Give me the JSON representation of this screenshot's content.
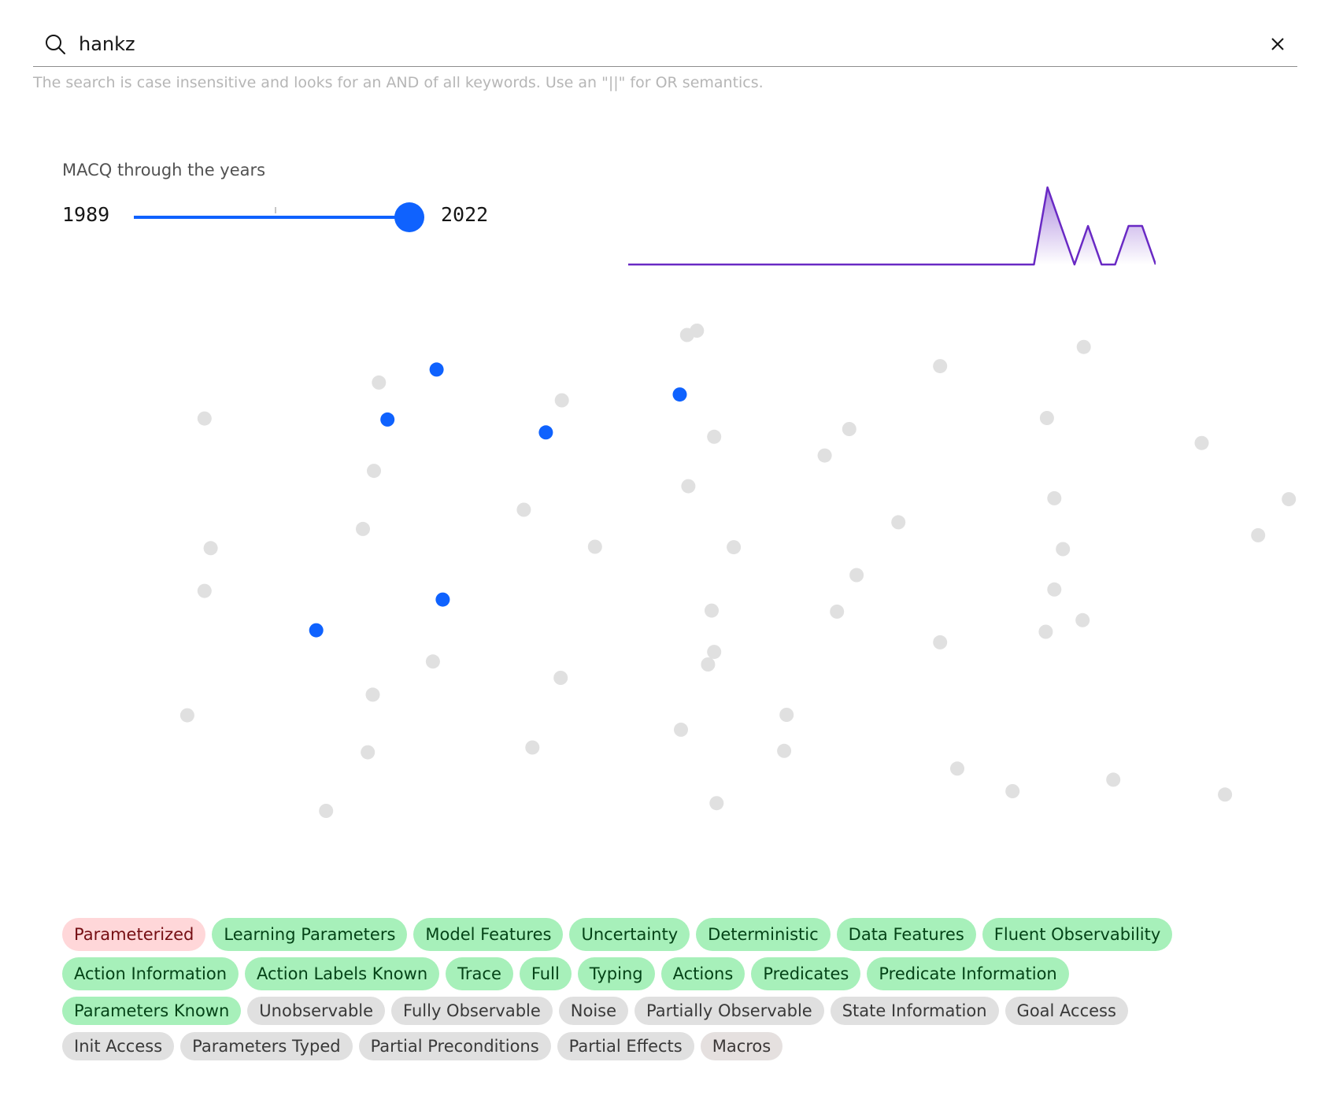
{
  "search": {
    "value": "hankz",
    "helper_text": "The search is case insensitive and looks for an AND of all keywords. Use an \"||\" for OR semantics."
  },
  "timeline": {
    "title": "MACQ through the years",
    "min_year": "1989",
    "max_year": "2022",
    "selected_fraction": 1.0
  },
  "sparkline_data": {
    "type": "area",
    "color": "#6929c4",
    "values": [
      0,
      0,
      0,
      0,
      0,
      0,
      0,
      0,
      0,
      0,
      0,
      0,
      0,
      0,
      0,
      0,
      0,
      0,
      0,
      0,
      0,
      0,
      0,
      0,
      0,
      0,
      0,
      0,
      0,
      0,
      0,
      2,
      1,
      0,
      1,
      0,
      0,
      1,
      1,
      0
    ]
  },
  "scatter": {
    "inactive_color": "#e0e0e0",
    "active_color": "#0f62fe",
    "points": [
      {
        "x": 0.489,
        "y": 0.991,
        "active": false
      },
      {
        "x": 0.812,
        "y": 0.966,
        "active": false
      },
      {
        "x": 0.695,
        "y": 0.926,
        "active": false
      },
      {
        "x": 0.238,
        "y": 0.892,
        "active": false
      },
      {
        "x": 0.096,
        "y": 0.817,
        "active": false
      },
      {
        "x": 0.387,
        "y": 0.855,
        "active": false
      },
      {
        "x": 0.511,
        "y": 0.779,
        "active": false
      },
      {
        "x": 0.621,
        "y": 0.795,
        "active": false
      },
      {
        "x": 0.782,
        "y": 0.818,
        "active": false
      },
      {
        "x": 0.908,
        "y": 0.766,
        "active": false
      },
      {
        "x": 0.234,
        "y": 0.708,
        "active": false
      },
      {
        "x": 0.601,
        "y": 0.74,
        "active": false
      },
      {
        "x": 0.49,
        "y": 0.676,
        "active": false
      },
      {
        "x": 0.356,
        "y": 0.627,
        "active": false
      },
      {
        "x": 0.225,
        "y": 0.587,
        "active": false
      },
      {
        "x": 0.101,
        "y": 0.547,
        "active": false
      },
      {
        "x": 0.414,
        "y": 0.55,
        "active": false
      },
      {
        "x": 0.661,
        "y": 0.601,
        "active": false
      },
      {
        "x": 0.788,
        "y": 0.651,
        "active": false
      },
      {
        "x": 0.527,
        "y": 0.549,
        "active": false
      },
      {
        "x": 0.627,
        "y": 0.491,
        "active": false
      },
      {
        "x": 0.795,
        "y": 0.545,
        "active": false
      },
      {
        "x": 0.954,
        "y": 0.574,
        "active": false
      },
      {
        "x": 0.979,
        "y": 0.649,
        "active": false
      },
      {
        "x": 0.096,
        "y": 0.458,
        "active": false
      },
      {
        "x": 0.509,
        "y": 0.417,
        "active": false
      },
      {
        "x": 0.511,
        "y": 0.331,
        "active": false
      },
      {
        "x": 0.611,
        "y": 0.415,
        "active": false
      },
      {
        "x": 0.781,
        "y": 0.373,
        "active": false
      },
      {
        "x": 0.788,
        "y": 0.461,
        "active": false
      },
      {
        "x": 0.386,
        "y": 0.277,
        "active": false
      },
      {
        "x": 0.695,
        "y": 0.351,
        "active": false
      },
      {
        "x": 0.811,
        "y": 0.397,
        "active": false
      },
      {
        "x": 0.506,
        "y": 0.305,
        "active": false
      },
      {
        "x": 0.282,
        "y": 0.311,
        "active": false
      },
      {
        "x": 0.57,
        "y": 0.2,
        "active": false
      },
      {
        "x": 0.233,
        "y": 0.242,
        "active": false
      },
      {
        "x": 0.082,
        "y": 0.199,
        "active": false
      },
      {
        "x": 0.363,
        "y": 0.132,
        "active": false
      },
      {
        "x": 0.229,
        "y": 0.122,
        "active": false
      },
      {
        "x": 0.484,
        "y": 0.169,
        "active": false
      },
      {
        "x": 0.568,
        "y": 0.125,
        "active": false
      },
      {
        "x": 0.709,
        "y": 0.088,
        "active": false
      },
      {
        "x": 0.754,
        "y": 0.041,
        "active": false
      },
      {
        "x": 0.513,
        "y": 0.016,
        "active": false
      },
      {
        "x": 0.836,
        "y": 0.065,
        "active": false
      },
      {
        "x": 0.927,
        "y": 0.034,
        "active": false
      },
      {
        "x": 0.195,
        "y": 0.0,
        "active": false
      },
      {
        "x": 0.497,
        "y": 1.0,
        "active": false
      },
      {
        "x": 0.29,
        "y": 0.44,
        "active": true
      },
      {
        "x": 0.187,
        "y": 0.376,
        "active": true
      },
      {
        "x": 0.245,
        "y": 0.815,
        "active": true
      },
      {
        "x": 0.374,
        "y": 0.788,
        "active": true
      },
      {
        "x": 0.483,
        "y": 0.867,
        "active": true
      },
      {
        "x": 0.285,
        "y": 0.919,
        "active": true
      }
    ]
  },
  "tags": [
    [
      {
        "label": "Parameterized",
        "status": "red"
      },
      {
        "label": "Learning Parameters",
        "status": "green"
      },
      {
        "label": "Model Features",
        "status": "green"
      },
      {
        "label": "Uncertainty",
        "status": "green"
      },
      {
        "label": "Deterministic",
        "status": "green"
      },
      {
        "label": "Data Features",
        "status": "green"
      },
      {
        "label": "Fluent Observability",
        "status": "green"
      }
    ],
    [
      {
        "label": "Action Information",
        "status": "green"
      },
      {
        "label": "Action Labels Known",
        "status": "green"
      },
      {
        "label": "Trace",
        "status": "green"
      },
      {
        "label": "Full",
        "status": "green"
      },
      {
        "label": "Typing",
        "status": "green"
      },
      {
        "label": "Actions",
        "status": "green"
      },
      {
        "label": "Predicates",
        "status": "green"
      },
      {
        "label": "Predicate Information",
        "status": "green"
      }
    ],
    [
      {
        "label": "Parameters Known",
        "status": "green"
      },
      {
        "label": "Unobservable",
        "status": "gray"
      },
      {
        "label": "Fully Observable",
        "status": "gray"
      },
      {
        "label": "Noise",
        "status": "gray"
      },
      {
        "label": "Partially Observable",
        "status": "gray"
      },
      {
        "label": "State Information",
        "status": "gray"
      },
      {
        "label": "Goal Access",
        "status": "gray"
      }
    ],
    [
      {
        "label": "Init Access",
        "status": "gray"
      },
      {
        "label": "Parameters Typed",
        "status": "gray"
      },
      {
        "label": "Partial Preconditions",
        "status": "gray"
      },
      {
        "label": "Partial Effects",
        "status": "gray"
      },
      {
        "label": "Macros",
        "status": "warm"
      }
    ]
  ]
}
